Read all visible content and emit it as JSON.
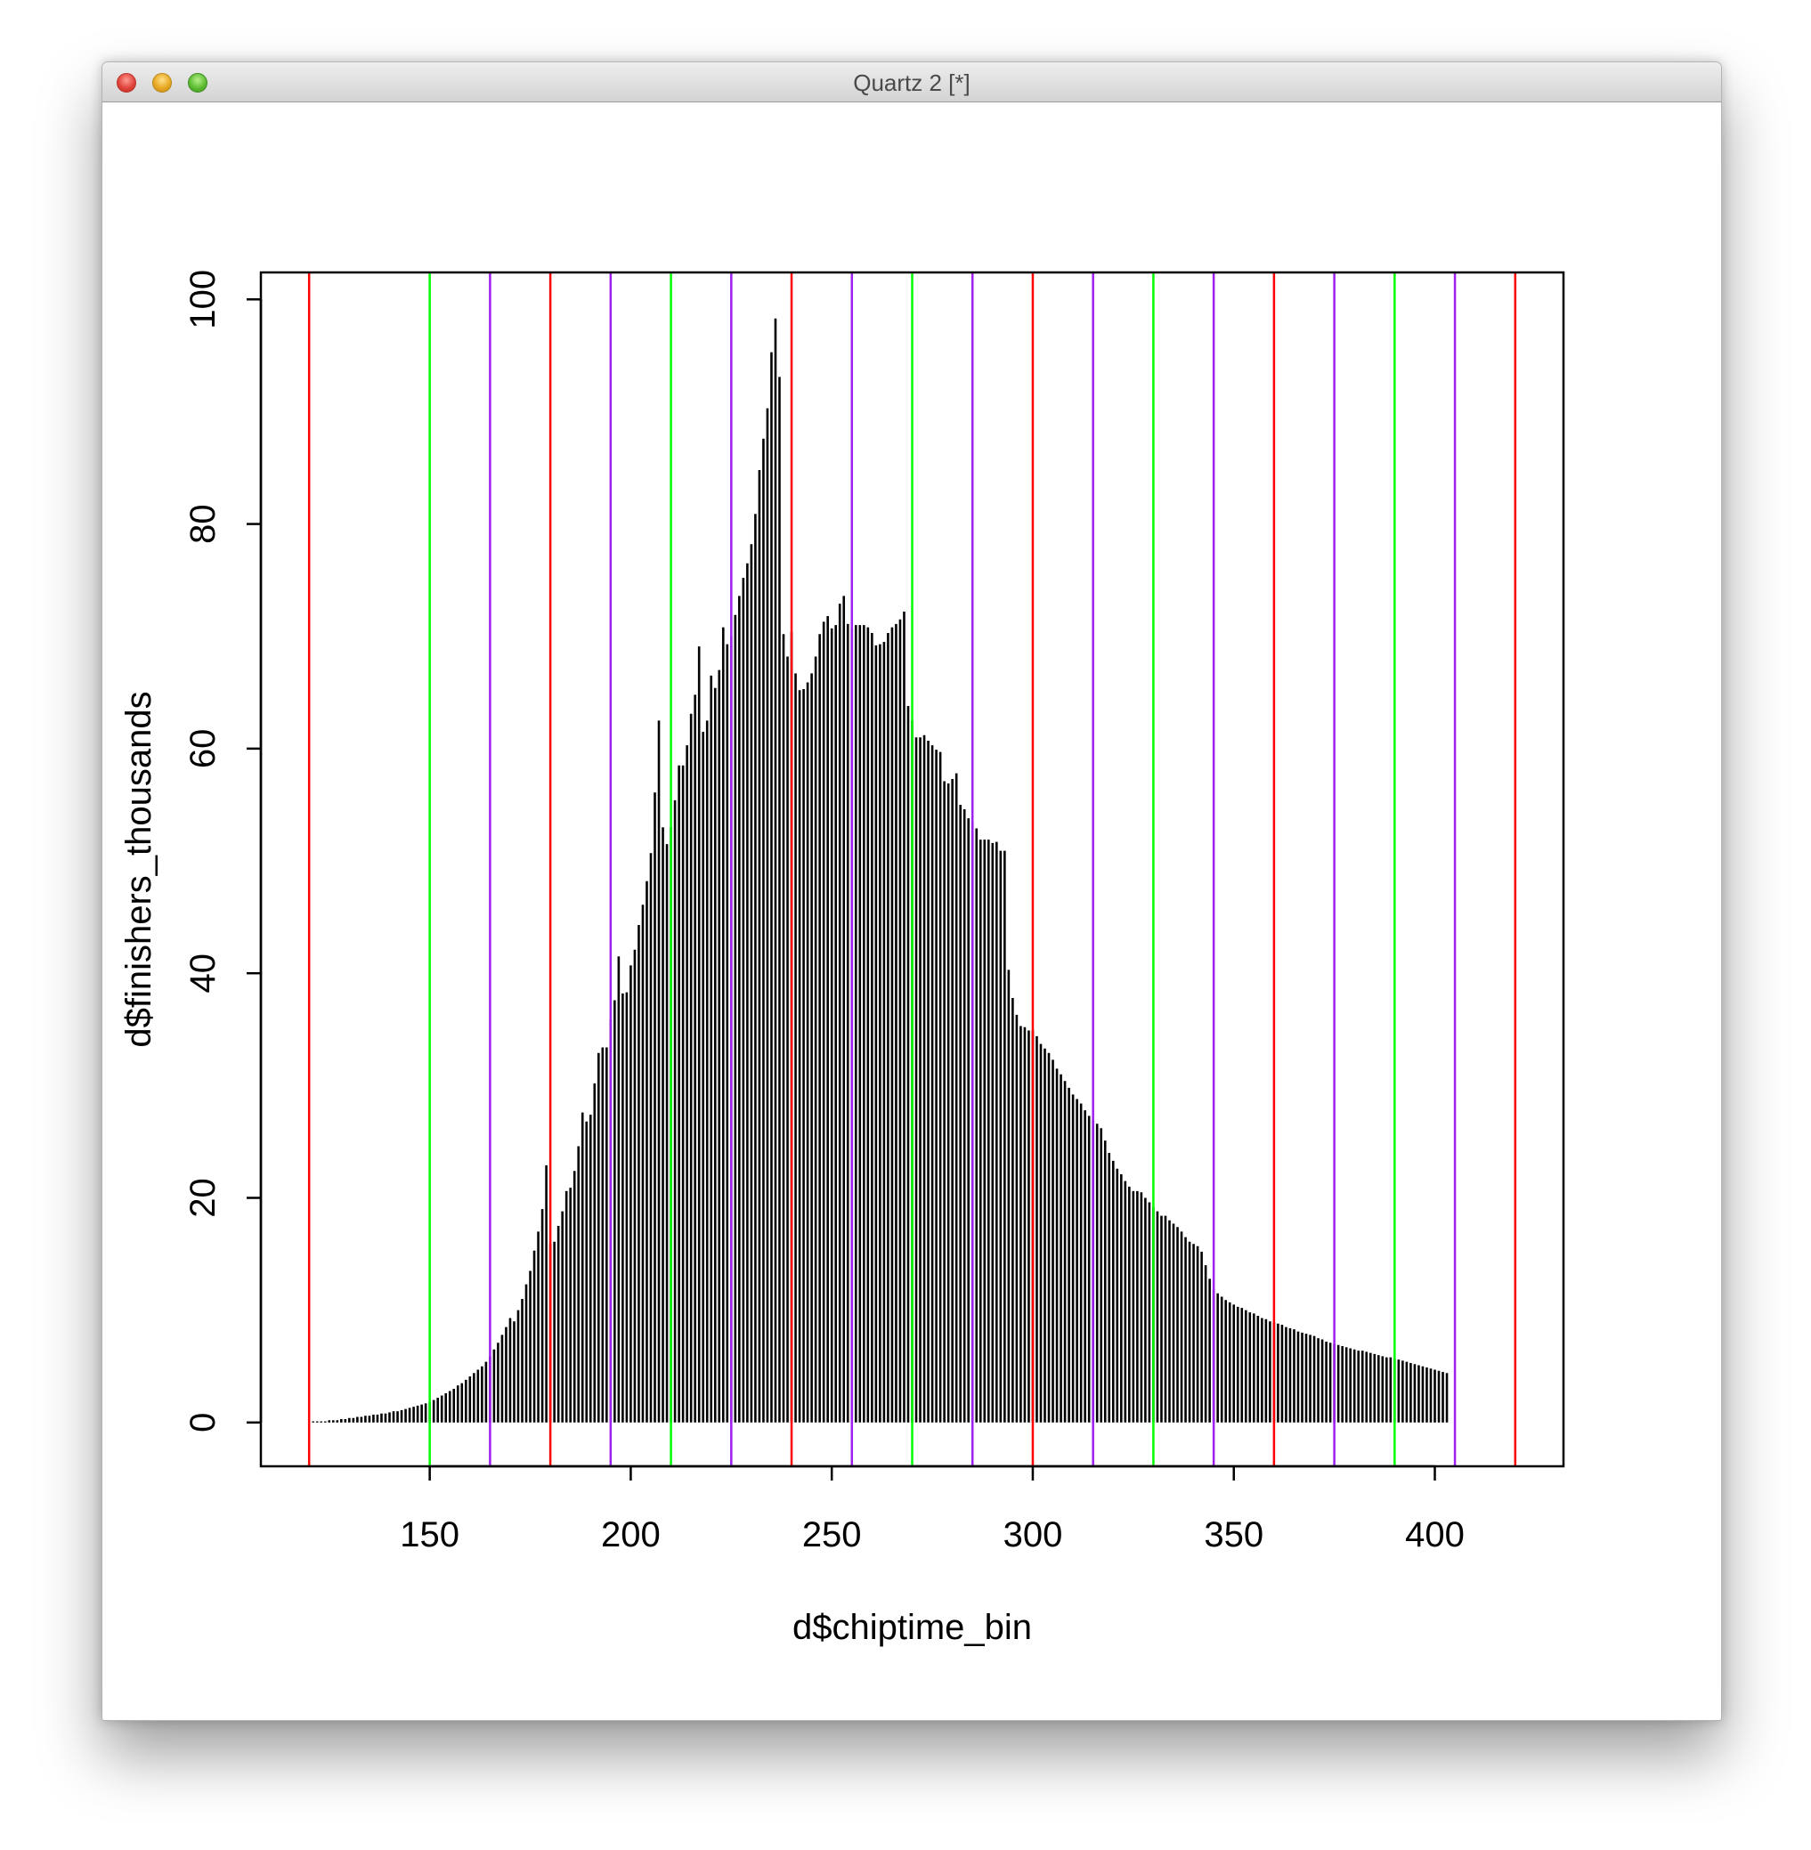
{
  "window": {
    "title": "Quartz 2 [*]",
    "buttons": [
      "close",
      "minimize",
      "zoom"
    ]
  },
  "chart_data": {
    "type": "bar",
    "title": "",
    "xlabel": "d$chiptime_bin",
    "ylabel": "d$finishers_thousands",
    "xlim": [
      108,
      432
    ],
    "ylim": [
      -3.9,
      102.4
    ],
    "xticks": [
      150,
      200,
      250,
      300,
      350,
      400
    ],
    "yticks": [
      0,
      20,
      40,
      60,
      80,
      100
    ],
    "grid": false,
    "bar_color": "#000000",
    "x_start": 121,
    "x_step": 1,
    "values": [
      0.1,
      0.1,
      0.1,
      0.1,
      0.2,
      0.2,
      0.2,
      0.3,
      0.3,
      0.4,
      0.4,
      0.5,
      0.5,
      0.6,
      0.6,
      0.7,
      0.7,
      0.8,
      0.8,
      0.9,
      1.0,
      1.0,
      1.1,
      1.2,
      1.3,
      1.4,
      1.5,
      1.6,
      1.7,
      1.8,
      2.0,
      2.2,
      2.4,
      2.6,
      2.8,
      3.0,
      3.3,
      3.5,
      3.8,
      4.1,
      4.4,
      4.7,
      5.0,
      5.4,
      5.9,
      6.5,
      7.1,
      7.8,
      8.5,
      9.3,
      9.0,
      10.0,
      11.0,
      12.3,
      13.5,
      15.3,
      17.0,
      19.0,
      22.9,
      15.9,
      16.1,
      17.5,
      18.8,
      20.6,
      20.9,
      22.4,
      24.6,
      27.6,
      26.8,
      27.4,
      30.2,
      32.9,
      33.4,
      33.4,
      35.9,
      37.6,
      41.5,
      38.2,
      38.3,
      40.7,
      42.1,
      44.3,
      46.1,
      48.2,
      50.7,
      56.1,
      62.5,
      53.0,
      51.5,
      53.0,
      55.4,
      58.5,
      58.5,
      60.3,
      63.1,
      64.8,
      69.1,
      61.5,
      62.5,
      66.5,
      65.4,
      67.0,
      70.8,
      69.3,
      70.0,
      71.9,
      73.6,
      75.2,
      76.5,
      78.2,
      80.9,
      84.8,
      87.6,
      90.3,
      95.3,
      98.3,
      93.1,
      70.2,
      68.2,
      70.4,
      66.7,
      65.2,
      65.3,
      65.9,
      66.7,
      68.2,
      70.2,
      71.3,
      71.8,
      70.7,
      71.0,
      72.9,
      73.6,
      71.1,
      70.7,
      71.0,
      71.0,
      71.0,
      70.8,
      70.3,
      69.2,
      69.3,
      69.5,
      70.3,
      70.8,
      71.1,
      71.5,
      72.2,
      63.8,
      62.5,
      61.0,
      61.0,
      61.2,
      60.7,
      60.3,
      59.9,
      59.7,
      57.1,
      56.9,
      57.3,
      57.8,
      55.0,
      54.6,
      53.8,
      53.5,
      52.9,
      51.9,
      51.9,
      51.9,
      51.6,
      51.7,
      50.9,
      50.9,
      40.3,
      37.8,
      36.3,
      35.3,
      35.2,
      34.9,
      34.9,
      34.4,
      33.7,
      33.3,
      32.9,
      32.3,
      31.5,
      31.0,
      30.4,
      29.8,
      29.2,
      28.8,
      28.4,
      27.8,
      27.3,
      26.9,
      26.6,
      26.2,
      25.1,
      24.0,
      23.3,
      22.6,
      22.1,
      21.5,
      21.0,
      20.6,
      20.6,
      20.5,
      20.0,
      19.6,
      19.2,
      18.8,
      18.4,
      18.4,
      18.0,
      17.7,
      17.4,
      17.0,
      16.5,
      16.1,
      15.9,
      15.7,
      15.2,
      14.0,
      12.8,
      11.9,
      11.5,
      11.2,
      10.9,
      10.7,
      10.5,
      10.3,
      10.2,
      10.0,
      9.8,
      9.7,
      9.5,
      9.3,
      9.2,
      9.0,
      8.9,
      8.8,
      8.7,
      8.5,
      8.4,
      8.3,
      8.1,
      8.0,
      7.9,
      7.8,
      7.7,
      7.5,
      7.4,
      7.2,
      7.1,
      7.0,
      6.9,
      6.8,
      6.7,
      6.6,
      6.5,
      6.4,
      6.4,
      6.3,
      6.2,
      6.1,
      6.0,
      5.9,
      5.8,
      5.8,
      5.7,
      5.6,
      5.5,
      5.4,
      5.3,
      5.2,
      5.1,
      5.0,
      4.9,
      4.8,
      4.7,
      4.6,
      4.5,
      4.4
    ],
    "vertical_lines": [
      {
        "x": 120,
        "color": "#ff0000"
      },
      {
        "x": 150,
        "color": "#00ff00"
      },
      {
        "x": 165,
        "color": "#a020f0"
      },
      {
        "x": 180,
        "color": "#ff0000"
      },
      {
        "x": 195,
        "color": "#a020f0"
      },
      {
        "x": 210,
        "color": "#00ff00"
      },
      {
        "x": 225,
        "color": "#a020f0"
      },
      {
        "x": 240,
        "color": "#ff0000"
      },
      {
        "x": 255,
        "color": "#a020f0"
      },
      {
        "x": 270,
        "color": "#00ff00"
      },
      {
        "x": 285,
        "color": "#a020f0"
      },
      {
        "x": 300,
        "color": "#ff0000"
      },
      {
        "x": 315,
        "color": "#a020f0"
      },
      {
        "x": 330,
        "color": "#00ff00"
      },
      {
        "x": 345,
        "color": "#a020f0"
      },
      {
        "x": 360,
        "color": "#ff0000"
      },
      {
        "x": 375,
        "color": "#a020f0"
      },
      {
        "x": 390,
        "color": "#00ff00"
      },
      {
        "x": 405,
        "color": "#a020f0"
      },
      {
        "x": 420,
        "color": "#ff0000"
      }
    ]
  }
}
